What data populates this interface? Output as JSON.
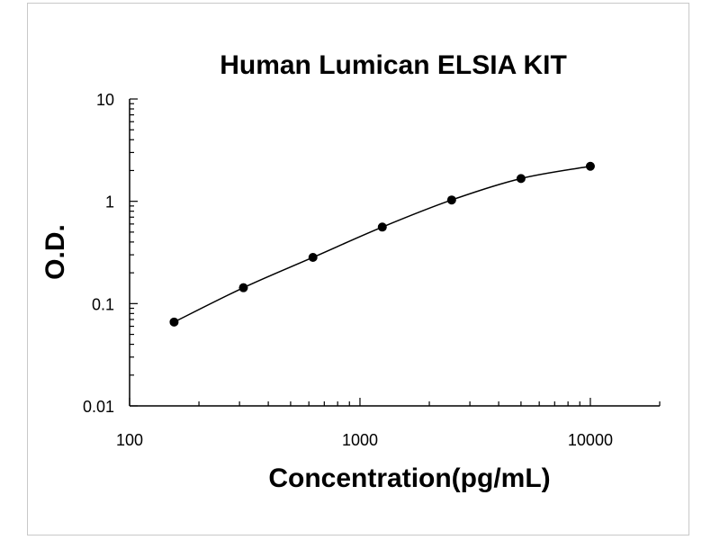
{
  "chart_data": {
    "type": "scatter",
    "title": "Human Lumican ELSIA KIT",
    "xlabel": "Concentration(pg/mL)",
    "ylabel": "O.D.",
    "x_scale": "log",
    "y_scale": "log",
    "xlim": [
      100,
      20000
    ],
    "ylim": [
      0.01,
      10
    ],
    "x_ticks": [
      {
        "value": 100,
        "label": "100"
      },
      {
        "value": 1000,
        "label": "1000"
      },
      {
        "value": 10000,
        "label": "10000"
      }
    ],
    "y_ticks": [
      {
        "value": 10,
        "label": "10"
      },
      {
        "value": 1,
        "label": "1"
      },
      {
        "value": 0.1,
        "label": "0.1"
      },
      {
        "value": 0.01,
        "label": "0.01"
      }
    ],
    "grid": false,
    "legend": "none",
    "series": [
      {
        "x": [
          156,
          312,
          625,
          1250,
          2500,
          5000,
          10000
        ],
        "y": [
          0.066,
          0.143,
          0.283,
          0.56,
          1.03,
          1.67,
          2.2
        ],
        "fit_curve": true,
        "color": "#000000"
      }
    ]
  }
}
